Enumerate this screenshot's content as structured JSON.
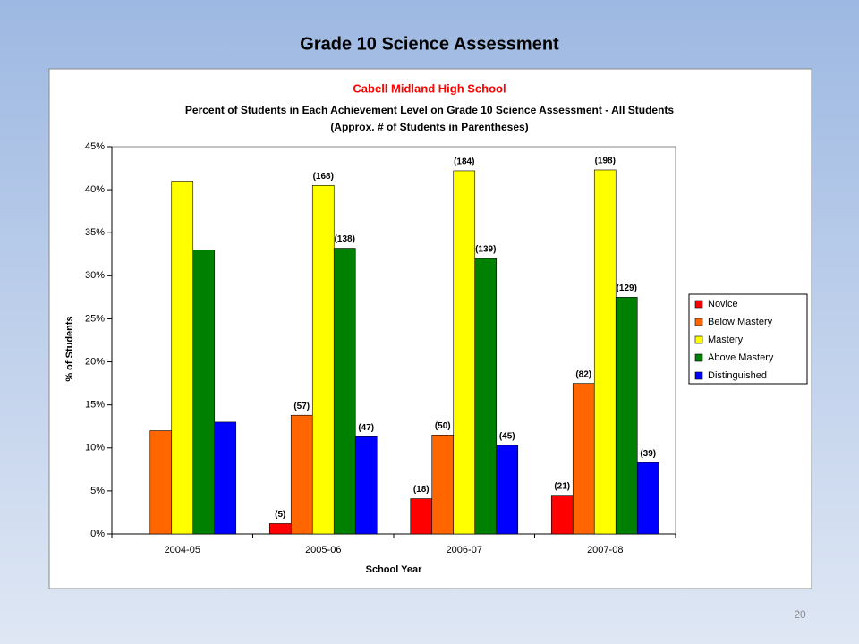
{
  "slide": {
    "title": "Grade 10 Science Assessment",
    "page_number": "20"
  },
  "chart_data": {
    "type": "bar",
    "title": "Cabell Midland High School",
    "subtitle": [
      "Percent of Students in Each Achievement Level on Grade 10 Science Assessment - All Students",
      "(Approx. # of Students in Parentheses)"
    ],
    "x_label": "School Year",
    "y_label": "% of Students",
    "categories": [
      "2004-05",
      "2005-06",
      "2006-07",
      "2007-08"
    ],
    "series": [
      {
        "name": "Novice",
        "color": "#ff0000",
        "values": [
          null,
          1.2,
          4.1,
          4.5
        ],
        "count_labels": [
          null,
          "(5)",
          "(18)",
          "(21)"
        ]
      },
      {
        "name": "Below Mastery",
        "color": "#ff6600",
        "values": [
          12.0,
          13.8,
          11.5,
          17.5
        ],
        "count_labels": [
          null,
          "(57)",
          "(50)",
          "(82)"
        ]
      },
      {
        "name": "Mastery",
        "color": "#ffff00",
        "values": [
          41.0,
          40.5,
          42.2,
          42.3
        ],
        "count_labels": [
          null,
          "(168)",
          "(184)",
          "(198)"
        ]
      },
      {
        "name": "Above Mastery",
        "color": "#008000",
        "values": [
          33.0,
          33.2,
          32.0,
          27.5
        ],
        "count_labels": [
          null,
          "(138)",
          "(139)",
          "(129)"
        ]
      },
      {
        "name": "Distinguished",
        "color": "#0000ff",
        "values": [
          13.0,
          11.3,
          10.3,
          8.3
        ],
        "count_labels": [
          null,
          "(47)",
          "(45)",
          "(39)"
        ]
      }
    ],
    "ylim": [
      0,
      45
    ],
    "yticks": [
      {
        "value": 0,
        "label": "0%"
      },
      {
        "value": 5,
        "label": "5%"
      },
      {
        "value": 10,
        "label": "10%"
      },
      {
        "value": 15,
        "label": "15%"
      },
      {
        "value": 20,
        "label": "20%"
      },
      {
        "value": 25,
        "label": "25%"
      },
      {
        "value": 30,
        "label": "30%"
      },
      {
        "value": 35,
        "label": "35%"
      },
      {
        "value": 40,
        "label": "40%"
      },
      {
        "value": 45,
        "label": "45%"
      }
    ],
    "grid": false,
    "legend": "right"
  }
}
